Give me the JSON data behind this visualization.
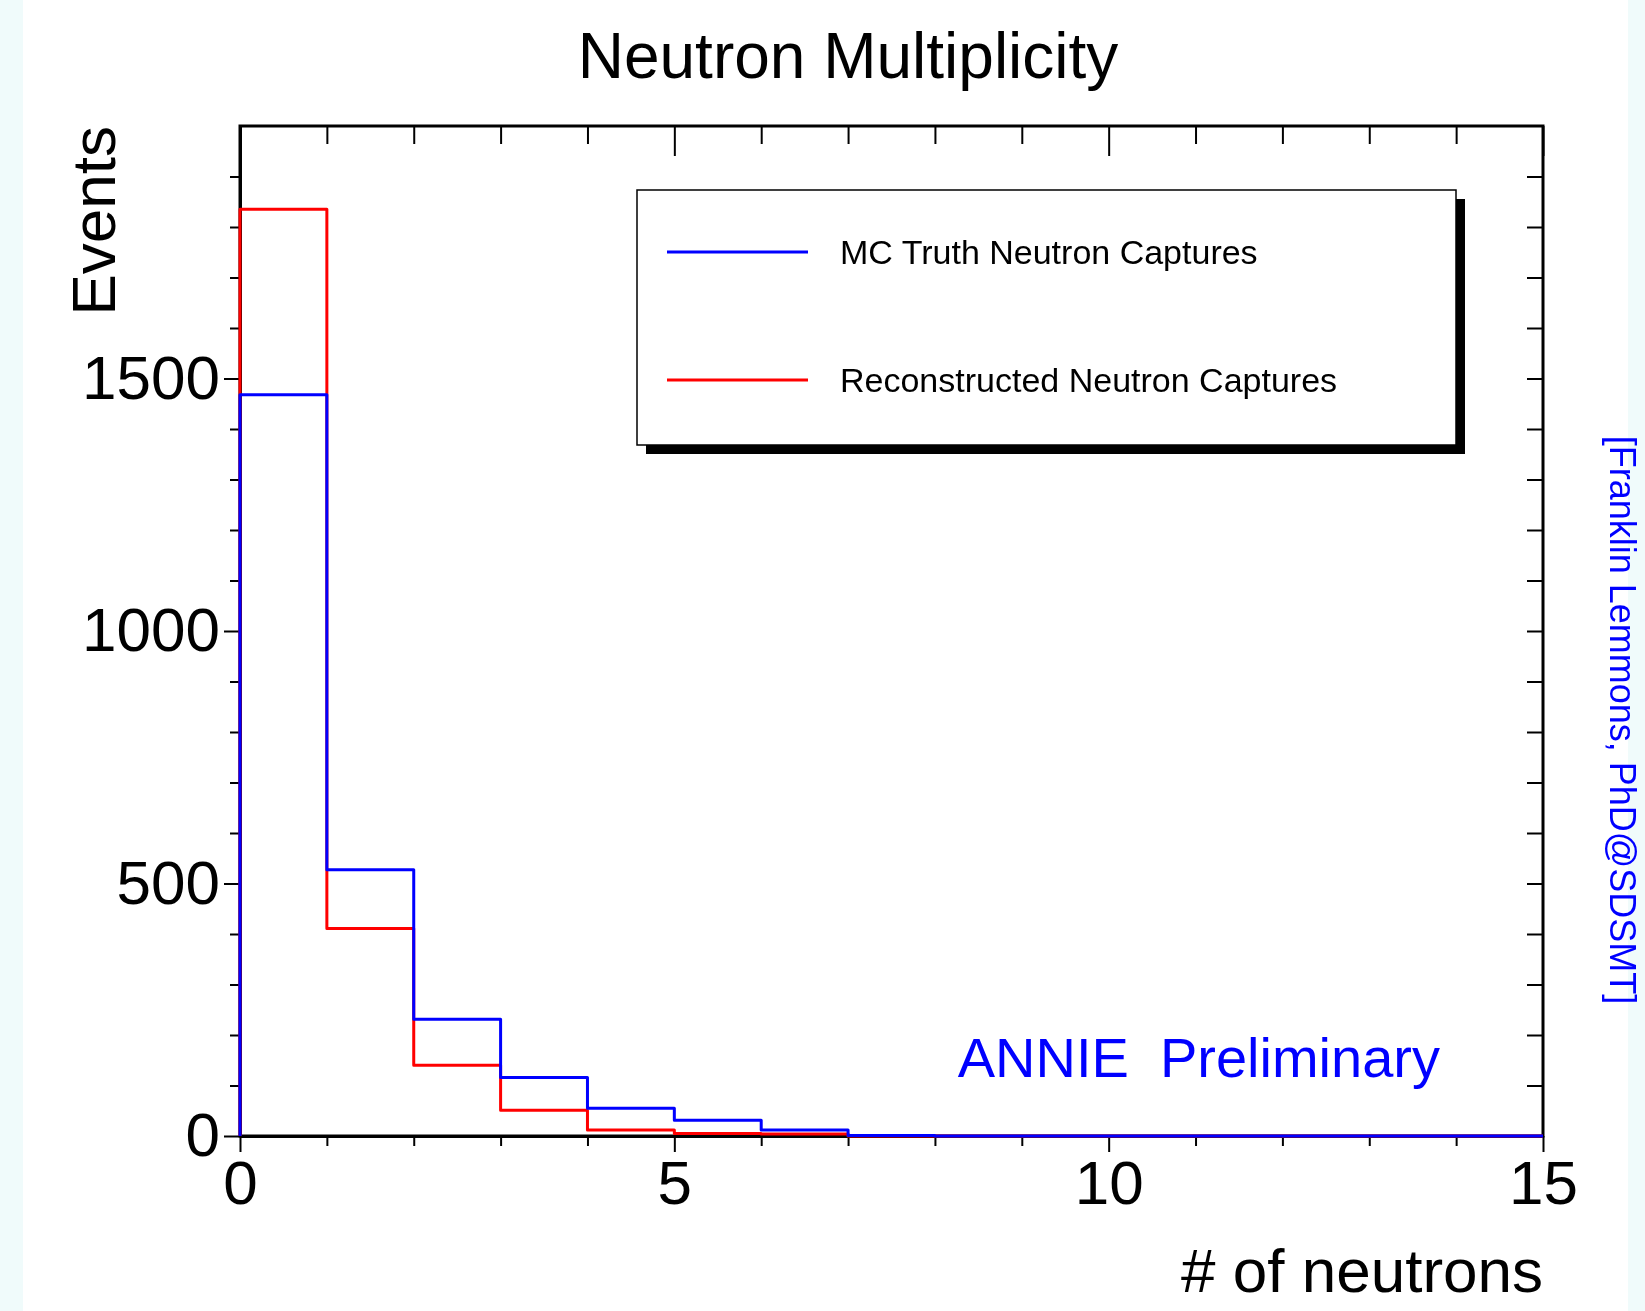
{
  "chart_data": {
    "type": "histogram",
    "title": "Neutron Multiplicity",
    "xlabel": "# of neutrons",
    "ylabel": "Events",
    "bins": [
      0,
      1,
      2,
      3,
      4,
      5,
      6,
      7,
      8,
      9,
      10,
      11,
      12,
      13,
      14,
      15
    ],
    "series": [
      {
        "name": "MC Truth Neutron Captures",
        "color": "#0000ff",
        "values": [
          1468,
          527,
          231,
          116,
          55,
          31,
          12,
          1,
          0,
          0,
          0,
          0,
          0,
          0,
          0
        ]
      },
      {
        "name": "Reconstructed Neutron Captures",
        "color": "#ff0000",
        "values": [
          1835,
          411,
          140,
          51,
          12,
          5,
          4,
          0,
          0,
          0,
          0,
          0,
          0,
          0,
          0
        ]
      }
    ],
    "xlim": [
      0,
      15
    ],
    "xticks": [
      0,
      {
        "value": 1,
        "label": null
      },
      {
        "value": 2,
        "label": null
      },
      {
        "value": 3,
        "label": null
      },
      {
        "value": 4,
        "label": null
      },
      5,
      {
        "value": 6,
        "label": null
      },
      {
        "value": 7,
        "label": null
      },
      {
        "value": 8,
        "label": null
      },
      {
        "value": 9,
        "label": null
      },
      10,
      {
        "value": 11,
        "label": null
      },
      {
        "value": 12,
        "label": null
      },
      {
        "value": 13,
        "label": null
      },
      {
        "value": 14,
        "label": null
      },
      15
    ],
    "ylim": [
      0,
      2000
    ],
    "yticks": [
      0,
      {
        "value": 100,
        "label": null
      },
      {
        "value": 200,
        "label": null
      },
      {
        "value": 300,
        "label": null
      },
      {
        "value": 400,
        "label": null
      },
      500,
      {
        "value": 600,
        "label": null
      },
      {
        "value": 700,
        "label": null
      },
      {
        "value": 800,
        "label": null
      },
      {
        "value": 900,
        "label": null
      },
      1000,
      {
        "value": 1100,
        "label": null
      },
      {
        "value": 1200,
        "label": null
      },
      {
        "value": 1300,
        "label": null
      },
      {
        "value": 1400,
        "label": null
      },
      1500,
      {
        "value": 1600,
        "label": null
      },
      {
        "value": 1700,
        "label": null
      },
      {
        "value": 1800,
        "label": null
      },
      {
        "value": 1900,
        "label": null
      }
    ],
    "legend": "top right",
    "annotations": [
      "ANNIE  Preliminary",
      "[Franklin Lemmons, PhD@SDSMT]"
    ]
  }
}
